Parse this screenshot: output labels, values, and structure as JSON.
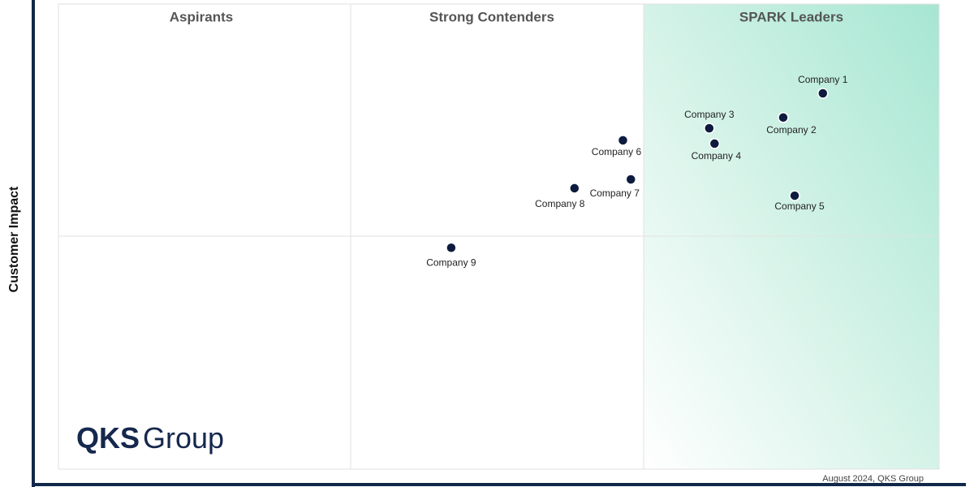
{
  "chart_data": {
    "type": "scatter",
    "y_label": "Customer Impact",
    "quadrants": [
      "Aspirants",
      "Strong Contenders",
      "SPARK Leaders"
    ],
    "points": [
      {
        "label": "Company 1",
        "x": 86.8,
        "y": 80.8
      },
      {
        "label": "Company 2",
        "x": 82.3,
        "y": 75.6
      },
      {
        "label": "Company 3",
        "x": 73.9,
        "y": 73.3
      },
      {
        "label": "Company 4",
        "x": 74.5,
        "y": 70.0
      },
      {
        "label": "Company 5",
        "x": 83.6,
        "y": 58.8
      },
      {
        "label": "Company 6",
        "x": 64.1,
        "y": 70.7
      },
      {
        "label": "Company 7",
        "x": 65.0,
        "y": 62.3
      },
      {
        "label": "Company 8",
        "x": 58.6,
        "y": 60.4
      },
      {
        "label": "Company 9",
        "x": 44.6,
        "y": 47.6
      }
    ],
    "color": "#0d1b3e",
    "xlim": [
      0,
      100
    ],
    "ylim": [
      0,
      100
    ],
    "logo": {
      "bold": "QKS",
      "text": "Group"
    },
    "source": "August 2024, QKS Group"
  }
}
